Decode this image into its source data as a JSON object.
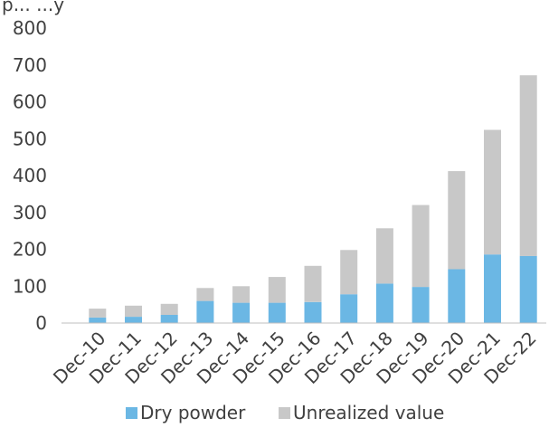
{
  "chart_data": {
    "type": "bar",
    "stacked": true,
    "title": "",
    "top_cut_text": "p... ...y",
    "xlabel": "",
    "ylabel": "",
    "categories": [
      "Dec-10",
      "Dec-11",
      "Dec-12",
      "Dec-13",
      "Dec-14",
      "Dec-15",
      "Dec-16",
      "Dec-17",
      "Dec-18",
      "Dec-19",
      "Dec-20",
      "Dec-21",
      "Dec-22"
    ],
    "series": [
      {
        "name": "Dry powder",
        "color": "#6BB7E4",
        "values": [
          15,
          17,
          22,
          60,
          55,
          55,
          57,
          78,
          107,
          98,
          146,
          186,
          182
        ]
      },
      {
        "name": "Unrealized value",
        "color": "#C8C8C8",
        "values": [
          24,
          30,
          30,
          35,
          45,
          70,
          98,
          120,
          150,
          222,
          266,
          338,
          490
        ]
      }
    ],
    "ylim": [
      0,
      800
    ],
    "yticks": [
      0,
      100,
      200,
      300,
      400,
      500,
      600,
      700,
      800
    ],
    "grid": false,
    "legend": "bottom"
  }
}
